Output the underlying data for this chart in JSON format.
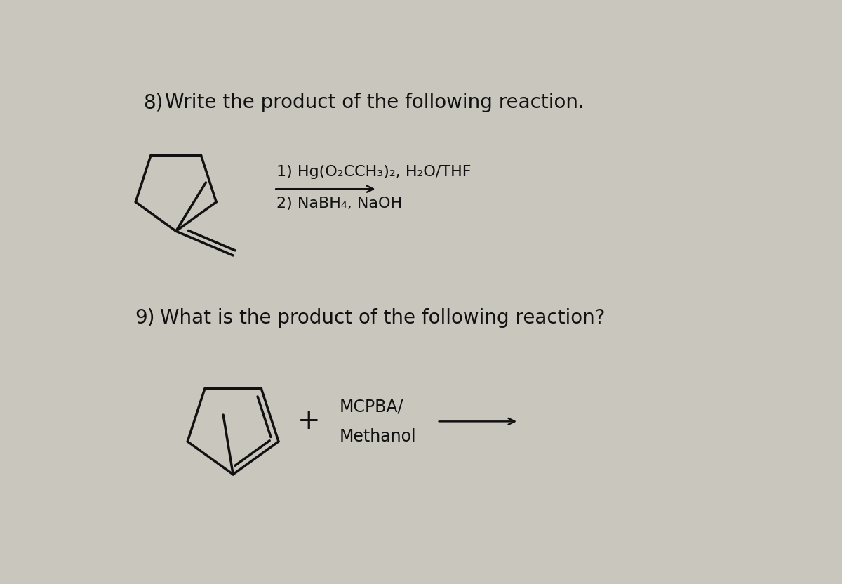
{
  "background_color": "#c9c6be",
  "text_color": "#111111",
  "line_color": "#111111",
  "line_width": 2.5,
  "q8_label": "8)",
  "q8_text": "Write the product of the following reaction.",
  "q9_label": "9)",
  "q9_text": "What is the product of the following reaction?",
  "reagent8_line1": "1) Hg(O₂CCH₃)₂, H₂O/THF",
  "reagent8_line2": "2) NaBH₄, NaOH",
  "mcpba_line1": "MCPBA/",
  "mcpba_line2": "Methanol",
  "plus_sign": "+",
  "font_size_question": 20,
  "font_size_reagent": 16,
  "font_size_label": 20
}
